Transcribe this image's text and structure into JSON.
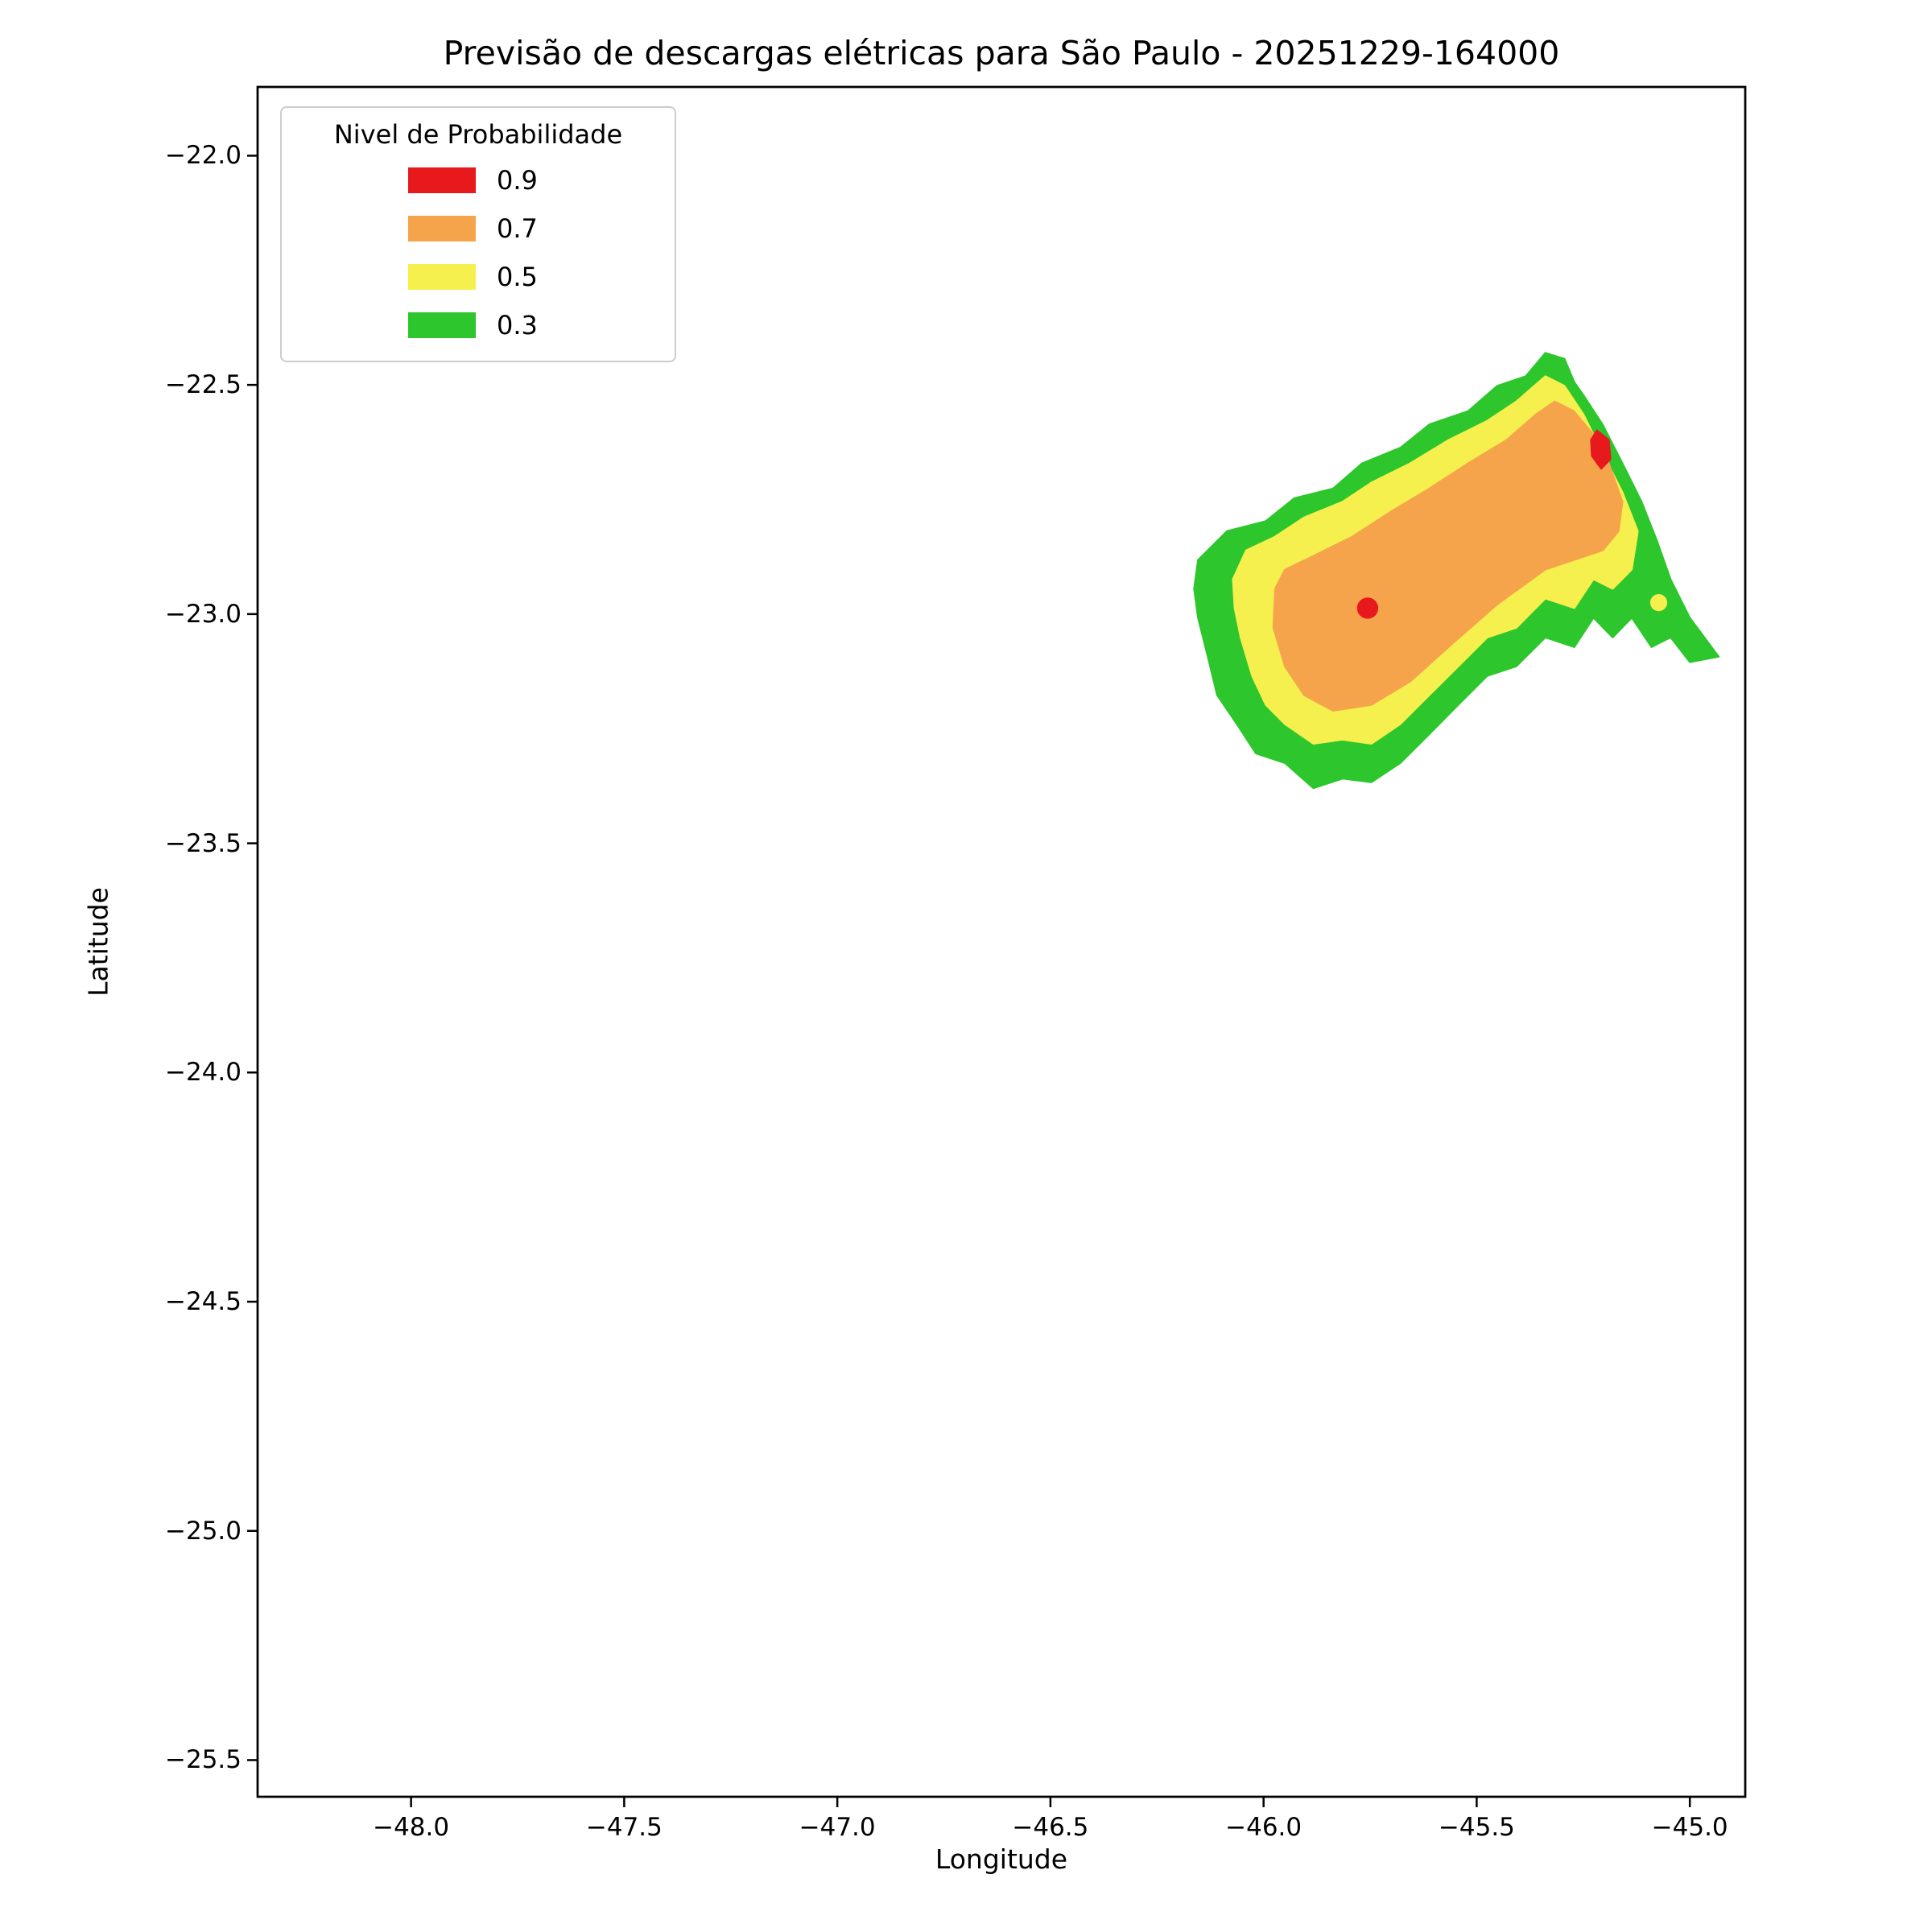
{
  "chart_data": {
    "type": "contour",
    "title": "Previsão de descargas elétricas para São Paulo - 20251229-164000",
    "xlabel": "Longitude",
    "ylabel": "Latitude",
    "xlim": [
      -48.36,
      -44.87
    ],
    "ylim": [
      -25.58,
      -21.85
    ],
    "grid": false,
    "xticks": [
      {
        "value": -48.0,
        "label": "−48.0"
      },
      {
        "value": -47.5,
        "label": "−47.5"
      },
      {
        "value": -47.0,
        "label": "−47.0"
      },
      {
        "value": -46.5,
        "label": "−46.5"
      },
      {
        "value": -46.0,
        "label": "−46.0"
      },
      {
        "value": -45.5,
        "label": "−45.5"
      },
      {
        "value": -45.0,
        "label": "−45.0"
      }
    ],
    "yticks": [
      {
        "value": -22.0,
        "label": "−22.0"
      },
      {
        "value": -22.5,
        "label": "−22.5"
      },
      {
        "value": -23.0,
        "label": "−23.0"
      },
      {
        "value": -23.5,
        "label": "−23.5"
      },
      {
        "value": -24.0,
        "label": "−24.0"
      },
      {
        "value": -24.5,
        "label": "−24.5"
      },
      {
        "value": -25.0,
        "label": "−25.0"
      },
      {
        "value": -25.5,
        "label": "−25.5"
      }
    ],
    "legend": {
      "title": "Nivel de Probabilidade",
      "position": "upper-left",
      "entries": [
        {
          "label": "0.9",
          "color": "#e8191c"
        },
        {
          "label": "0.7",
          "color": "#f6a44c"
        },
        {
          "label": "0.5",
          "color": "#f5f04d"
        },
        {
          "label": "0.3",
          "color": "#2dc62d"
        }
      ]
    },
    "contours": [
      {
        "level": 0.3,
        "color": "#2dc62d",
        "polygon": [
          [
            -46.154,
            -22.882
          ],
          [
            -46.086,
            -22.819
          ],
          [
            -45.995,
            -22.797
          ],
          [
            -45.928,
            -22.747
          ],
          [
            -45.837,
            -22.726
          ],
          [
            -45.769,
            -22.671
          ],
          [
            -45.679,
            -22.637
          ],
          [
            -45.611,
            -22.586
          ],
          [
            -45.52,
            -22.557
          ],
          [
            -45.452,
            -22.502
          ],
          [
            -45.385,
            -22.481
          ],
          [
            -45.339,
            -22.43
          ],
          [
            -45.294,
            -22.443
          ],
          [
            -45.271,
            -22.494
          ],
          [
            -45.249,
            -22.523
          ],
          [
            -45.204,
            -22.587
          ],
          [
            -45.158,
            -22.671
          ],
          [
            -45.113,
            -22.755
          ],
          [
            -45.077,
            -22.84
          ],
          [
            -45.045,
            -22.924
          ],
          [
            -45.0,
            -23.008
          ],
          [
            -44.932,
            -23.093
          ],
          [
            -45.0,
            -23.105
          ],
          [
            -45.045,
            -23.051
          ],
          [
            -45.09,
            -23.072
          ],
          [
            -45.136,
            -23.008
          ],
          [
            -45.181,
            -23.051
          ],
          [
            -45.226,
            -23.008
          ],
          [
            -45.271,
            -23.072
          ],
          [
            -45.339,
            -23.051
          ],
          [
            -45.407,
            -23.114
          ],
          [
            -45.475,
            -23.135
          ],
          [
            -45.543,
            -23.198
          ],
          [
            -45.611,
            -23.262
          ],
          [
            -45.679,
            -23.325
          ],
          [
            -45.747,
            -23.367
          ],
          [
            -45.815,
            -23.359
          ],
          [
            -45.883,
            -23.38
          ],
          [
            -45.95,
            -23.325
          ],
          [
            -46.018,
            -23.304
          ],
          [
            -46.063,
            -23.24
          ],
          [
            -46.109,
            -23.177
          ],
          [
            -46.131,
            -23.093
          ],
          [
            -46.154,
            -23.008
          ],
          [
            -46.163,
            -22.945
          ]
        ]
      },
      {
        "level": 0.5,
        "color": "#f5f04d",
        "polygon": [
          [
            -46.072,
            -22.924
          ],
          [
            -46.041,
            -22.861
          ],
          [
            -45.973,
            -22.831
          ],
          [
            -45.905,
            -22.789
          ],
          [
            -45.815,
            -22.755
          ],
          [
            -45.747,
            -22.713
          ],
          [
            -45.656,
            -22.671
          ],
          [
            -45.566,
            -22.62
          ],
          [
            -45.475,
            -22.578
          ],
          [
            -45.407,
            -22.536
          ],
          [
            -45.339,
            -22.481
          ],
          [
            -45.294,
            -22.502
          ],
          [
            -45.249,
            -22.565
          ],
          [
            -45.204,
            -22.65
          ],
          [
            -45.158,
            -22.734
          ],
          [
            -45.122,
            -22.819
          ],
          [
            -45.136,
            -22.903
          ],
          [
            -45.181,
            -22.945
          ],
          [
            -45.226,
            -22.924
          ],
          [
            -45.271,
            -22.987
          ],
          [
            -45.339,
            -22.966
          ],
          [
            -45.407,
            -23.03
          ],
          [
            -45.475,
            -23.051
          ],
          [
            -45.543,
            -23.114
          ],
          [
            -45.611,
            -23.177
          ],
          [
            -45.679,
            -23.24
          ],
          [
            -45.747,
            -23.283
          ],
          [
            -45.815,
            -23.274
          ],
          [
            -45.883,
            -23.283
          ],
          [
            -45.95,
            -23.24
          ],
          [
            -45.995,
            -23.198
          ],
          [
            -46.027,
            -23.135
          ],
          [
            -46.054,
            -23.051
          ],
          [
            -46.068,
            -22.987
          ]
        ]
      },
      {
        "level": 0.7,
        "color": "#f6a44c",
        "polygon": [
          [
            -45.973,
            -22.945
          ],
          [
            -45.95,
            -22.903
          ],
          [
            -45.883,
            -22.873
          ],
          [
            -45.792,
            -22.831
          ],
          [
            -45.701,
            -22.776
          ],
          [
            -45.611,
            -22.726
          ],
          [
            -45.52,
            -22.671
          ],
          [
            -45.43,
            -22.62
          ],
          [
            -45.362,
            -22.565
          ],
          [
            -45.317,
            -22.536
          ],
          [
            -45.272,
            -22.557
          ],
          [
            -45.227,
            -22.607
          ],
          [
            -45.19,
            -22.671
          ],
          [
            -45.158,
            -22.755
          ],
          [
            -45.167,
            -22.819
          ],
          [
            -45.204,
            -22.861
          ],
          [
            -45.339,
            -22.903
          ],
          [
            -45.452,
            -22.979
          ],
          [
            -45.566,
            -23.072
          ],
          [
            -45.656,
            -23.147
          ],
          [
            -45.747,
            -23.198
          ],
          [
            -45.837,
            -23.211
          ],
          [
            -45.905,
            -23.177
          ],
          [
            -45.95,
            -23.114
          ],
          [
            -45.977,
            -23.03
          ]
        ]
      },
      {
        "level": 0.9,
        "color": "#e8191c",
        "polygon": [
          [
            -45.218,
            -22.599
          ],
          [
            -45.19,
            -22.62
          ],
          [
            -45.186,
            -22.662
          ],
          [
            -45.208,
            -22.683
          ],
          [
            -45.23,
            -22.655
          ],
          [
            -45.232,
            -22.62
          ]
        ]
      }
    ],
    "markers": [
      {
        "shape": "circle",
        "level": 0.9,
        "color": "#e8191c",
        "center": [
          -45.756,
          -22.987
        ],
        "radius_deg": 0.025
      },
      {
        "shape": "circle",
        "level": 0.5,
        "color": "#f5f04d",
        "center": [
          -45.073,
          -22.975
        ],
        "radius_deg": 0.02
      }
    ]
  }
}
